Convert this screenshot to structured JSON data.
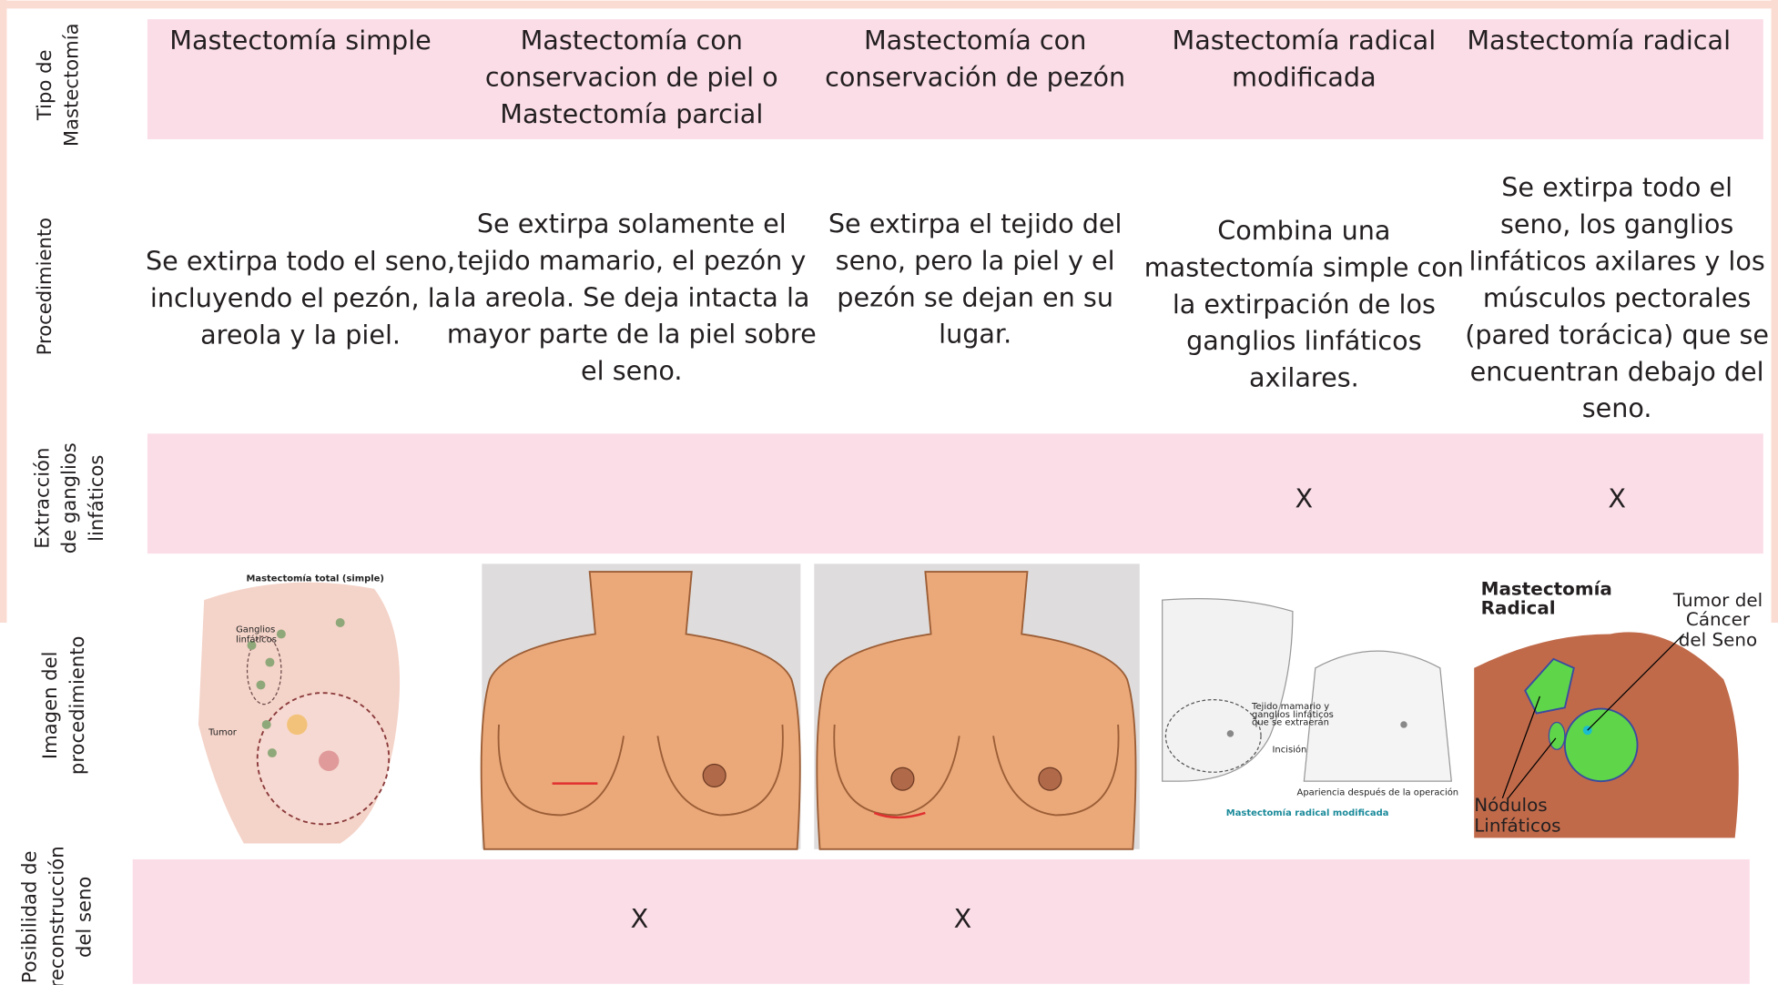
{
  "row_labels": [
    [
      "Tipo de",
      "Mastectomía"
    ],
    [
      "Procedimiento"
    ],
    [
      "Extracción",
      "de ganglios",
      "linfáticos"
    ],
    [
      "Imagen del",
      "procedimiento"
    ],
    [
      "Posibilidad de",
      "reconstrucción",
      "del seno"
    ]
  ],
  "table": {
    "types": [
      [
        "Mastectomía simple"
      ],
      [
        "Mastectomía con",
        "conservacion de piel o",
        "Mastectomía parcial"
      ],
      [
        "Mastectomía con",
        "conservación de pezón"
      ],
      [
        "Mastectomía radical",
        "modificada"
      ],
      [
        "Mastectomía radical"
      ]
    ],
    "procedures": [
      [
        "Se extirpa todo el seno,",
        "incluyendo el pezón, la",
        "areola y la piel."
      ],
      [
        "Se extirpa solamente el",
        "tejido mamario, el pezón y",
        "la areola.  Se deja intacta la",
        "mayor parte de la piel sobre",
        "el seno."
      ],
      [
        "Se extirpa el tejido del",
        "seno, pero la piel y el",
        "pezón se dejan en su",
        "lugar."
      ],
      [
        "Combina una",
        "mastectomía simple con",
        "la extirpación de los",
        "ganglios linfáticos",
        "axilares."
      ],
      [
        "Se extirpa todo el",
        "seno, los ganglios",
        "linfáticos axilares y los",
        "músculos pectorales",
        "(pared torácica) que se",
        "encuentran debajo del",
        "seno."
      ]
    ],
    "lymph_node_removal": [
      null,
      null,
      null,
      "X",
      "X"
    ],
    "images": [
      {
        "labels": [
          "Mastectomía total (simple)",
          "Ganglios",
          "linfáticos",
          "Tumor"
        ]
      },
      {
        "labels": []
      },
      {
        "labels": []
      },
      {
        "labels": [
          "Tejido mamario y",
          "ganglios linfáticos",
          "que se extraerán",
          "Incisión",
          "Apariencia después de la operación",
          "Mastectomía radical modificada"
        ]
      },
      {
        "labels": [
          "Mastectomía",
          "Radical",
          "Tumor del",
          "Cáncer",
          "del Seno",
          "Nódulos",
          "Linfáticos"
        ]
      }
    ],
    "reconstruction": [
      null,
      "X",
      "X",
      null,
      null
    ]
  }
}
